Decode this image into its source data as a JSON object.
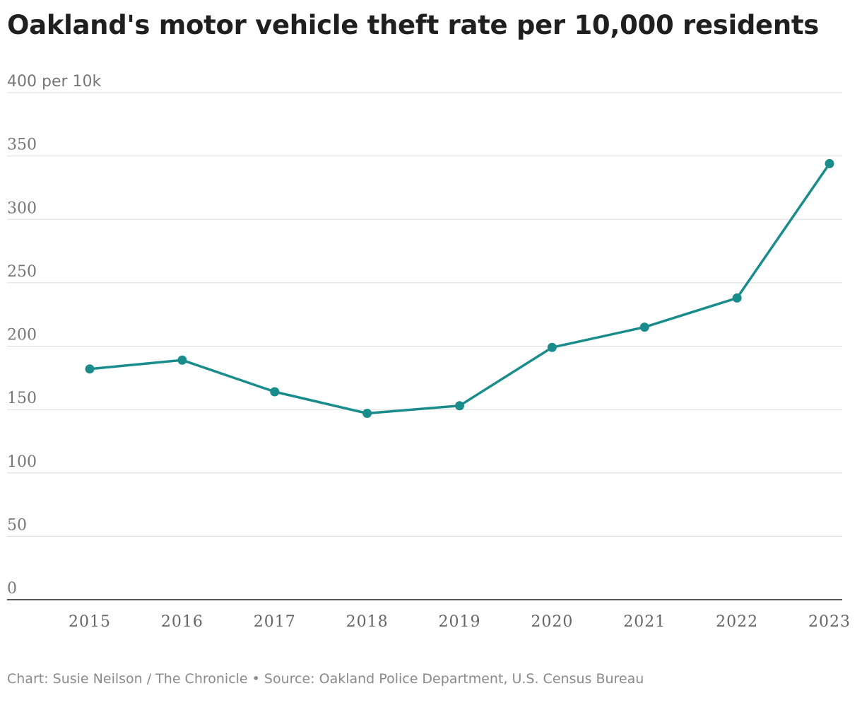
{
  "chart_data": {
    "type": "line",
    "title": "Oakland's motor vehicle theft rate per 10,000 residents",
    "y_unit_label": "400 per 10k",
    "ylim": [
      0,
      400
    ],
    "y_ticks": [
      0,
      50,
      100,
      150,
      200,
      250,
      300,
      350,
      400
    ],
    "y_tick_labels": [
      "0",
      "50",
      "100",
      "150",
      "200",
      "250",
      "300",
      "350",
      "400 per 10k"
    ],
    "x": [
      "2015",
      "2016",
      "2017",
      "2018",
      "2019",
      "2020",
      "2021",
      "2022",
      "2023"
    ],
    "series": [
      {
        "values": [
          182,
          189,
          164,
          147,
          153,
          199,
          215,
          238,
          344
        ]
      }
    ],
    "grid": true,
    "line_color": "#1a8c8c"
  },
  "footer": {
    "credit": "Chart: Susie Neilson / The Chronicle",
    "separator": "•",
    "source": "Source: Oakland Police Department, U.S. Census Bureau"
  }
}
